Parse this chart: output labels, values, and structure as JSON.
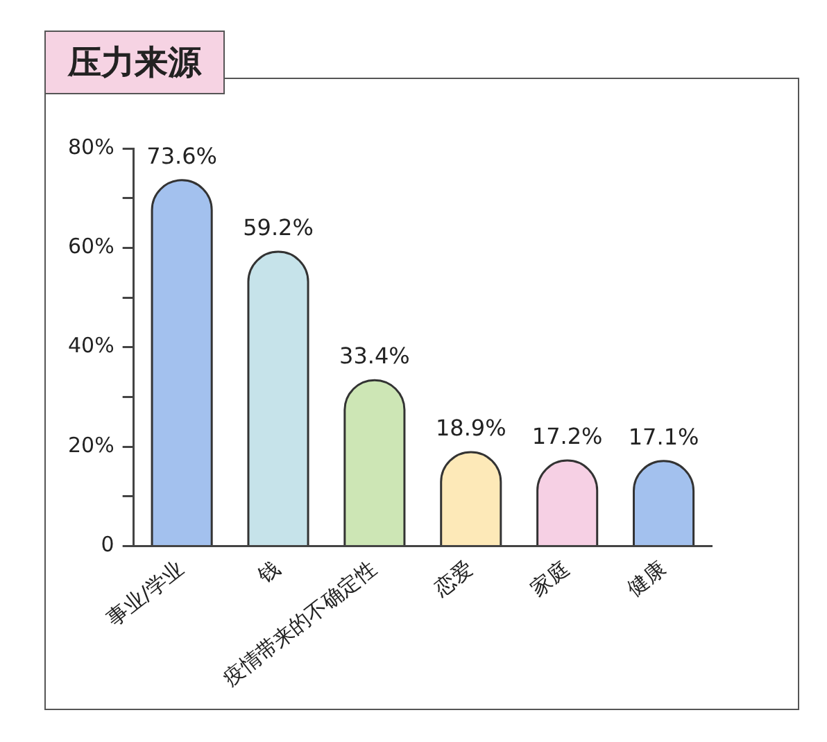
{
  "chart_data": {
    "type": "bar",
    "title": "压力来源",
    "categories": [
      "事业/学业",
      "钱",
      "疫情带来的不确定性",
      "恋爱",
      "家庭",
      "健康"
    ],
    "values": [
      73.6,
      59.2,
      33.4,
      18.9,
      17.2,
      17.1
    ],
    "colors": [
      "#a3c1ee",
      "#c6e3ea",
      "#cde6b5",
      "#fde9b8",
      "#f6d0e4",
      "#a3c1ee"
    ],
    "value_labels": [
      "73.6%",
      "59.2%",
      "33.4%",
      "18.9%",
      "17.2%",
      "17.1%"
    ],
    "ylim": [
      0,
      80
    ],
    "yticks": [
      {
        "value": 0,
        "label": "0"
      },
      {
        "value": 10,
        "label": null
      },
      {
        "value": 20,
        "label": "20%"
      },
      {
        "value": 30,
        "label": null
      },
      {
        "value": 40,
        "label": "40%"
      },
      {
        "value": 50,
        "label": null
      },
      {
        "value": 60,
        "label": "60%"
      },
      {
        "value": 70,
        "label": null
      },
      {
        "value": 80,
        "label": "80%"
      }
    ],
    "grid": false,
    "legend": false
  }
}
